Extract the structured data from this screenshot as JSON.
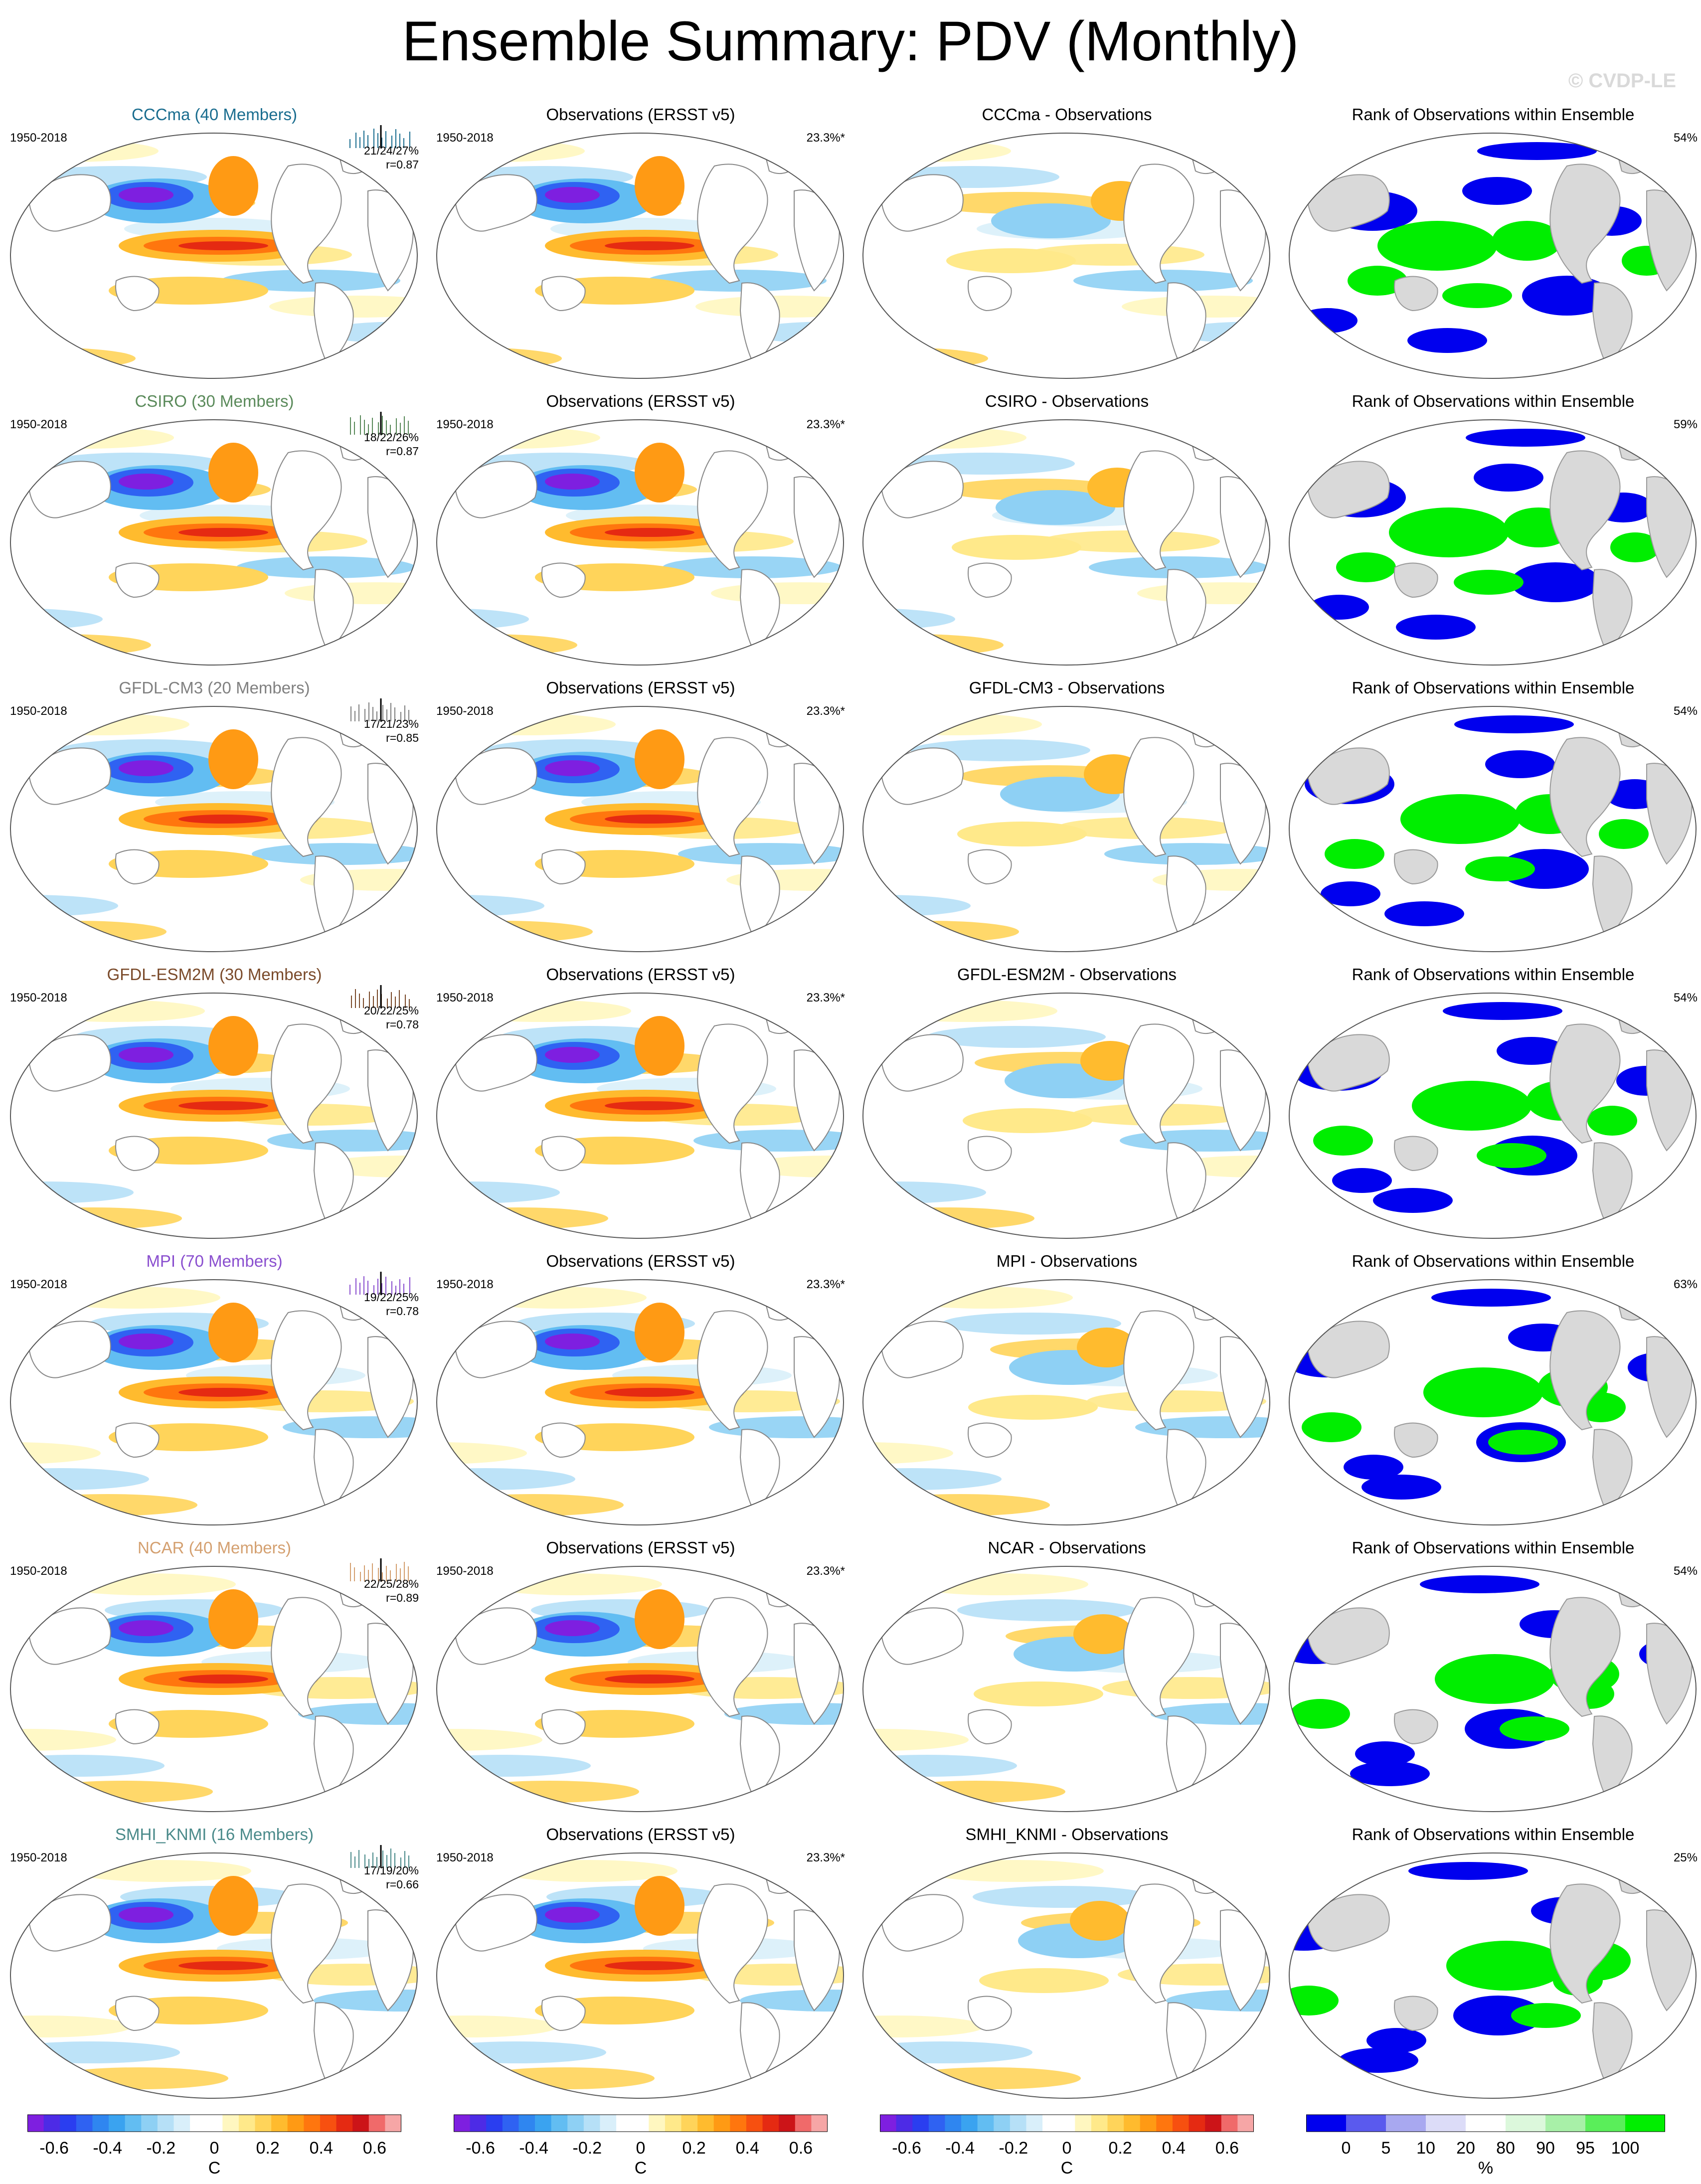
{
  "title": "Ensemble Summary: PDV (Monthly)",
  "watermark": "© CVDP-LE",
  "colors": {
    "ensemble_titles": [
      "#1a6d8f",
      "#5a8a5a",
      "#808080",
      "#7a4a2a",
      "#8a4fcf",
      "#d4a070",
      "#4a8a8a"
    ],
    "ocean_neutral": "#ffffff",
    "land": "#ffffff",
    "land_rank": "#d9d9d9",
    "rank_low": "#0000ee",
    "rank_high": "#00ee00"
  },
  "rows": [
    {
      "ensemble": {
        "title": "CCCma (40 Members)",
        "years": "1950-2018",
        "stat1": "21/24/27%",
        "stat2": "r=0.87"
      },
      "obs": {
        "title": "Observations (ERSST v5)",
        "years": "1950-2018",
        "pct": "23.3%*"
      },
      "diff": {
        "title": "CCCma - Observations"
      },
      "rank": {
        "title": "Rank of Observations within Ensemble",
        "pct": "54%"
      }
    },
    {
      "ensemble": {
        "title": "CSIRO (30 Members)",
        "years": "1950-2018",
        "stat1": "18/22/26%",
        "stat2": "r=0.87"
      },
      "obs": {
        "title": "Observations (ERSST v5)",
        "years": "1950-2018",
        "pct": "23.3%*"
      },
      "diff": {
        "title": "CSIRO - Observations"
      },
      "rank": {
        "title": "Rank of Observations within Ensemble",
        "pct": "59%"
      }
    },
    {
      "ensemble": {
        "title": "GFDL-CM3 (20 Members)",
        "years": "1950-2018",
        "stat1": "17/21/23%",
        "stat2": "r=0.85"
      },
      "obs": {
        "title": "Observations (ERSST v5)",
        "years": "1950-2018",
        "pct": "23.3%*"
      },
      "diff": {
        "title": "GFDL-CM3 - Observations"
      },
      "rank": {
        "title": "Rank of Observations within Ensemble",
        "pct": "54%"
      }
    },
    {
      "ensemble": {
        "title": "GFDL-ESM2M (30 Members)",
        "years": "1950-2018",
        "stat1": "20/22/25%",
        "stat2": "r=0.78"
      },
      "obs": {
        "title": "Observations (ERSST v5)",
        "years": "1950-2018",
        "pct": "23.3%*"
      },
      "diff": {
        "title": "GFDL-ESM2M - Observations"
      },
      "rank": {
        "title": "Rank of Observations within Ensemble",
        "pct": "54%"
      }
    },
    {
      "ensemble": {
        "title": "MPI (70 Members)",
        "years": "1950-2018",
        "stat1": "19/22/25%",
        "stat2": "r=0.78"
      },
      "obs": {
        "title": "Observations (ERSST v5)",
        "years": "1950-2018",
        "pct": "23.3%*"
      },
      "diff": {
        "title": "MPI - Observations"
      },
      "rank": {
        "title": "Rank of Observations within Ensemble",
        "pct": "63%"
      }
    },
    {
      "ensemble": {
        "title": "NCAR (40 Members)",
        "years": "1950-2018",
        "stat1": "22/25/28%",
        "stat2": "r=0.89"
      },
      "obs": {
        "title": "Observations (ERSST v5)",
        "years": "1950-2018",
        "pct": "23.3%*"
      },
      "diff": {
        "title": "NCAR - Observations"
      },
      "rank": {
        "title": "Rank of Observations within Ensemble",
        "pct": "54%"
      }
    },
    {
      "ensemble": {
        "title": "SMHI_KNMI (16 Members)",
        "years": "1950-2018",
        "stat1": "17/19/20%",
        "stat2": "r=0.66"
      },
      "obs": {
        "title": "Observations (ERSST v5)",
        "years": "1950-2018",
        "pct": "23.3%*"
      },
      "diff": {
        "title": "SMHI_KNMI - Observations"
      },
      "rank": {
        "title": "Rank of Observations within Ensemble",
        "pct": "25%"
      }
    }
  ],
  "colorbars": {
    "sst": {
      "unit": "C",
      "tick_labels": [
        "-0.6",
        "-0.4",
        "-0.2",
        "0",
        "0.2",
        "0.4",
        "0.6"
      ],
      "tick_values": [
        -0.6,
        -0.4,
        -0.2,
        0,
        0.2,
        0.4,
        0.6
      ],
      "range": [
        -0.7,
        0.7
      ],
      "colors": [
        "#7e1fe0",
        "#4d2be6",
        "#2a3ef0",
        "#2f62f2",
        "#2f86f0",
        "#3aa3f0",
        "#62bdf2",
        "#8ed0f4",
        "#b6e0f7",
        "#d9effa",
        "#ffffff",
        "#ffffff",
        "#fff7c0",
        "#ffe98a",
        "#ffd45a",
        "#ffbb2e",
        "#ff9a14",
        "#ff760e",
        "#f75010",
        "#e52a12",
        "#cc1418",
        "#f06a6a",
        "#f6a6a6"
      ]
    },
    "rank": {
      "unit": "%",
      "tick_labels": [
        "0",
        "5",
        "10",
        "20",
        "80",
        "90",
        "95",
        "100"
      ],
      "tick_values": [
        0,
        5,
        10,
        20,
        80,
        90,
        95,
        100
      ],
      "colors": [
        "#0000ee",
        "#5a5aee",
        "#a8a8f0",
        "#dcdcf8",
        "#ffffff",
        "#dcf8dc",
        "#a8f0a8",
        "#5aee5a",
        "#00ee00"
      ]
    }
  }
}
